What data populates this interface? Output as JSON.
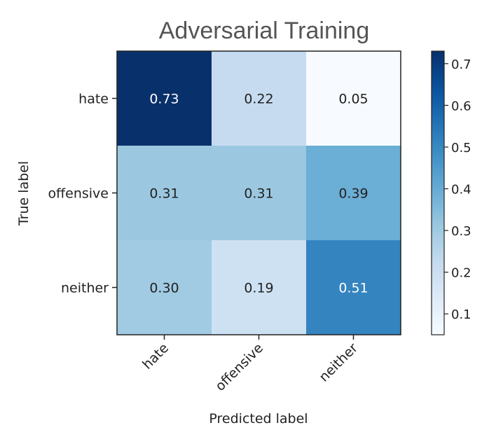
{
  "chart_data": {
    "type": "heatmap",
    "title": "Adversarial Training",
    "xlabel": "Predicted label",
    "ylabel": "True label",
    "x_categories": [
      "hate",
      "offensive",
      "neither"
    ],
    "y_categories": [
      "hate",
      "offensive",
      "neither"
    ],
    "values": [
      [
        0.73,
        0.22,
        0.05
      ],
      [
        0.31,
        0.31,
        0.39
      ],
      [
        0.3,
        0.19,
        0.51
      ]
    ],
    "value_labels": [
      [
        "0.73",
        "0.22",
        "0.05"
      ],
      [
        "0.31",
        "0.31",
        "0.39"
      ],
      [
        "0.30",
        "0.19",
        "0.51"
      ]
    ],
    "colormap": "Blues",
    "colorbar": {
      "range": [
        0.05,
        0.73
      ],
      "ticks": [
        0.1,
        0.2,
        0.3,
        0.4,
        0.5,
        0.6,
        0.7
      ],
      "tick_labels": [
        "0.1",
        "0.2",
        "0.3",
        "0.4",
        "0.5",
        "0.6",
        "0.7"
      ]
    },
    "x_tick_rotation": 45
  }
}
